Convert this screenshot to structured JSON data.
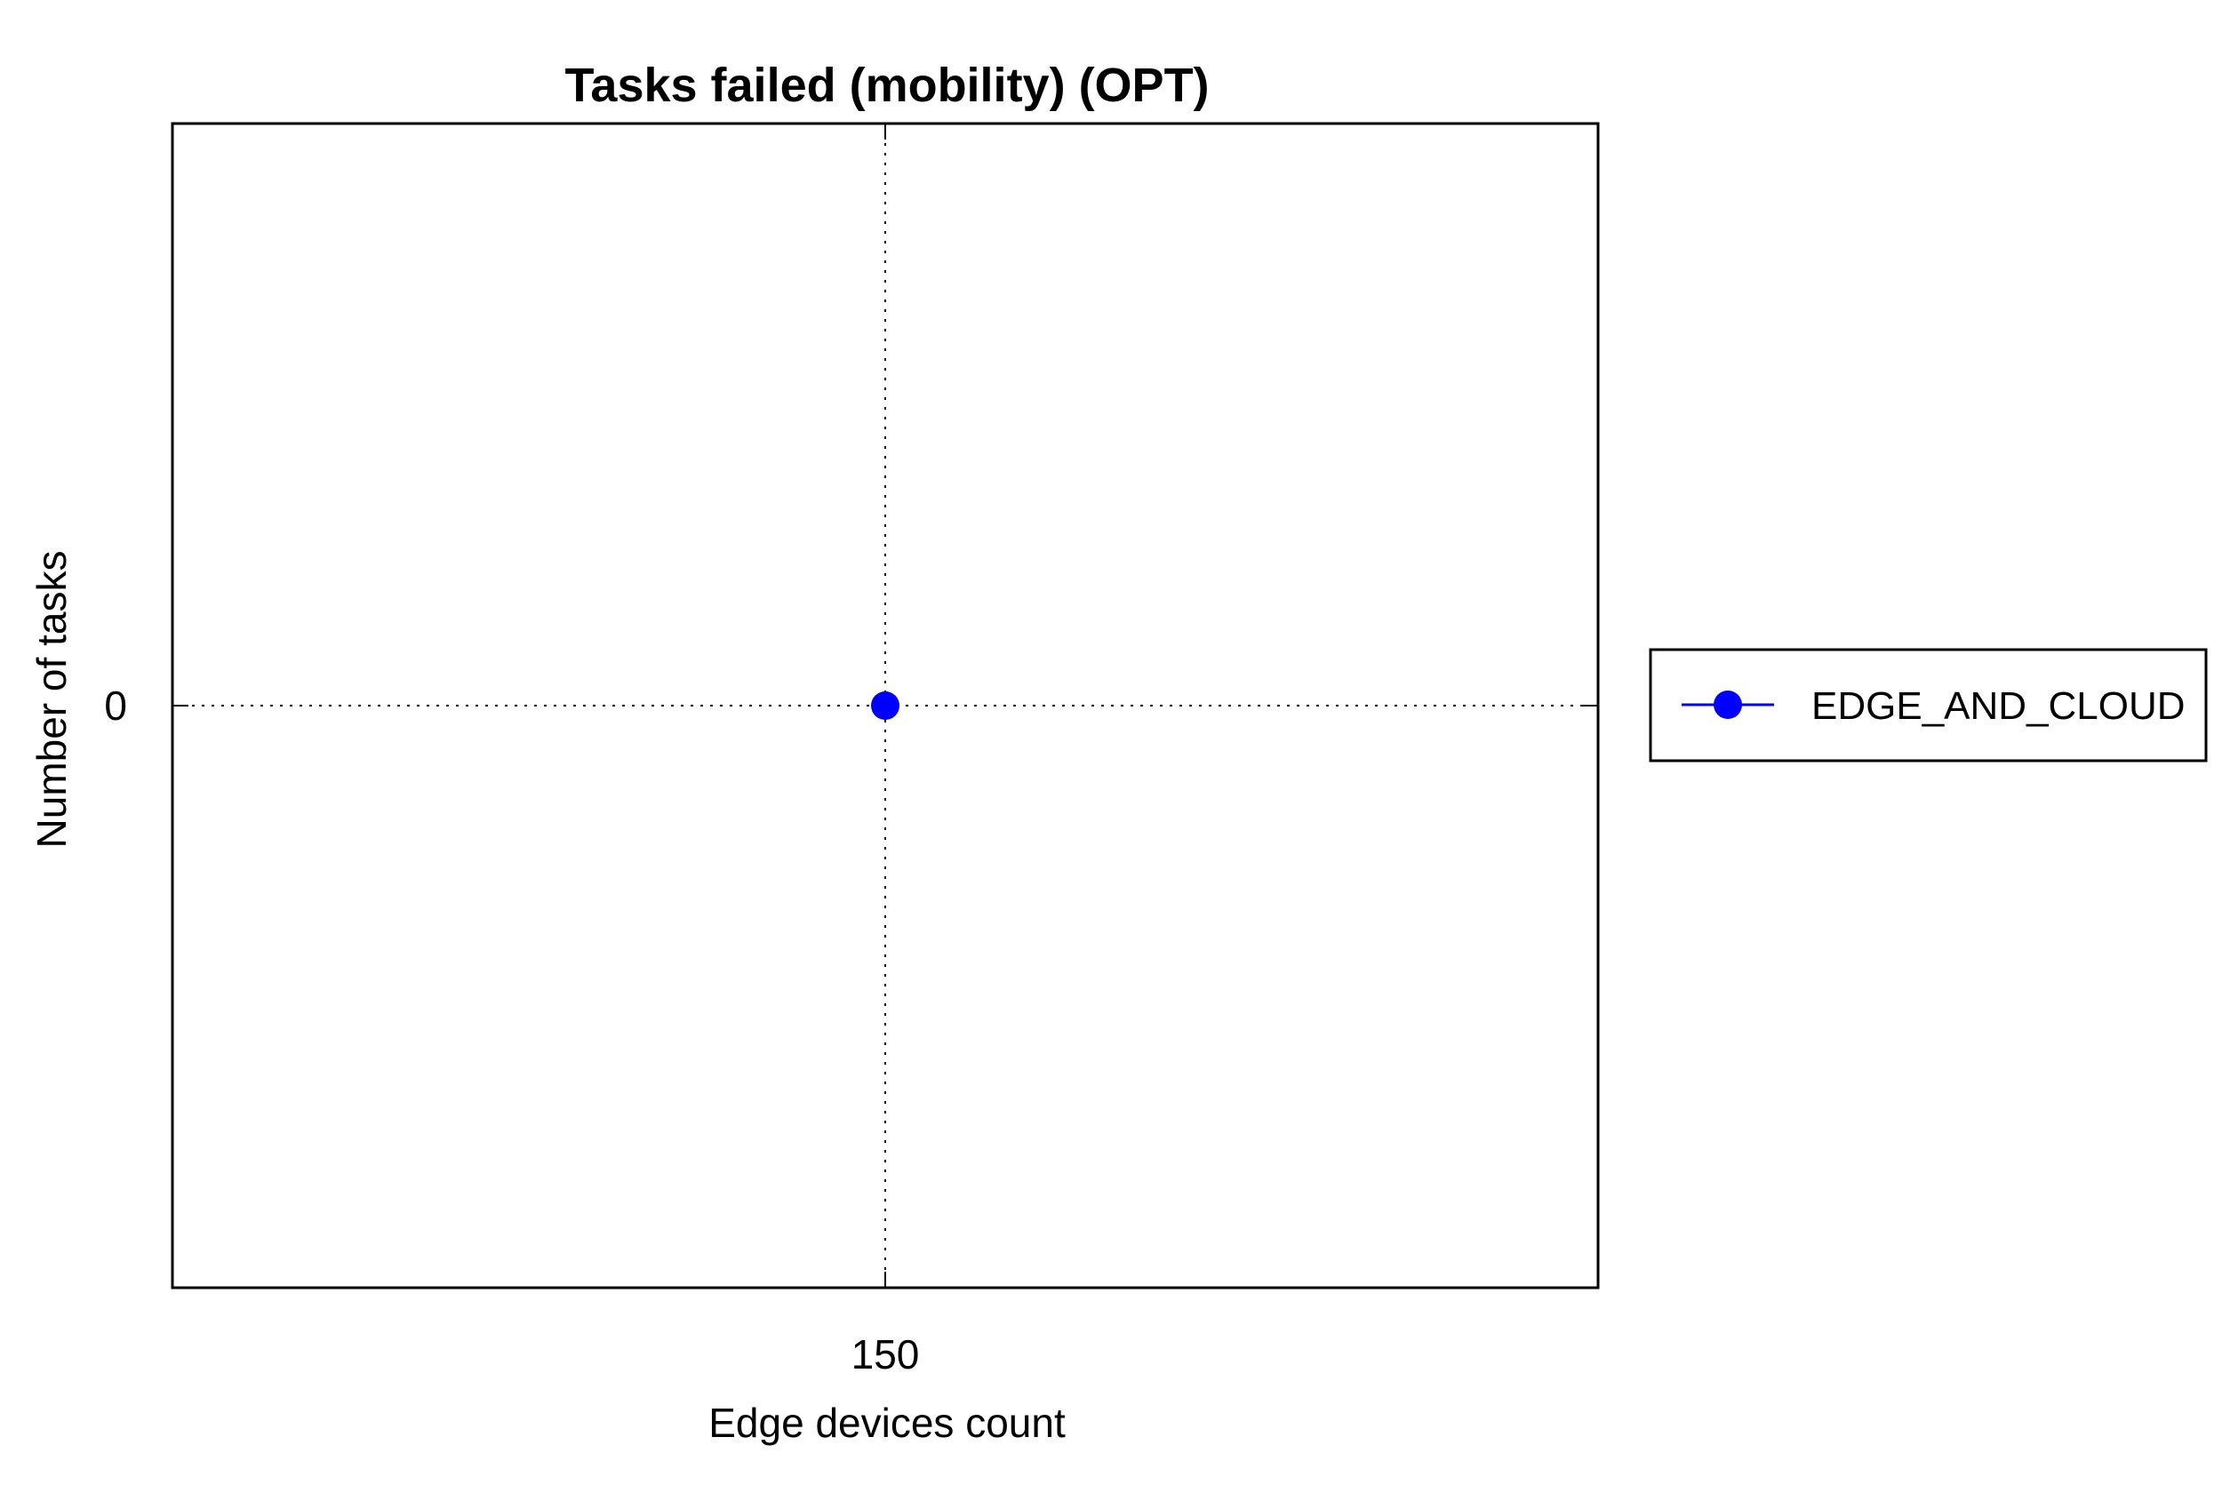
{
  "chart_data": {
    "type": "line",
    "title": "Tasks failed (mobility) (OPT)",
    "xlabel": "Edge devices count",
    "ylabel": "Number of tasks",
    "x": [
      150
    ],
    "x_ticks": [
      "150"
    ],
    "y_ticks": [
      "0"
    ],
    "xlim": [
      100,
      200
    ],
    "ylim": [
      -1,
      1
    ],
    "grid": true,
    "legend_position": "right",
    "series": [
      {
        "name": "EDGE_AND_CLOUD",
        "color": "#0000ff",
        "marker": "circle",
        "x": [
          150
        ],
        "y": [
          0
        ]
      }
    ]
  }
}
